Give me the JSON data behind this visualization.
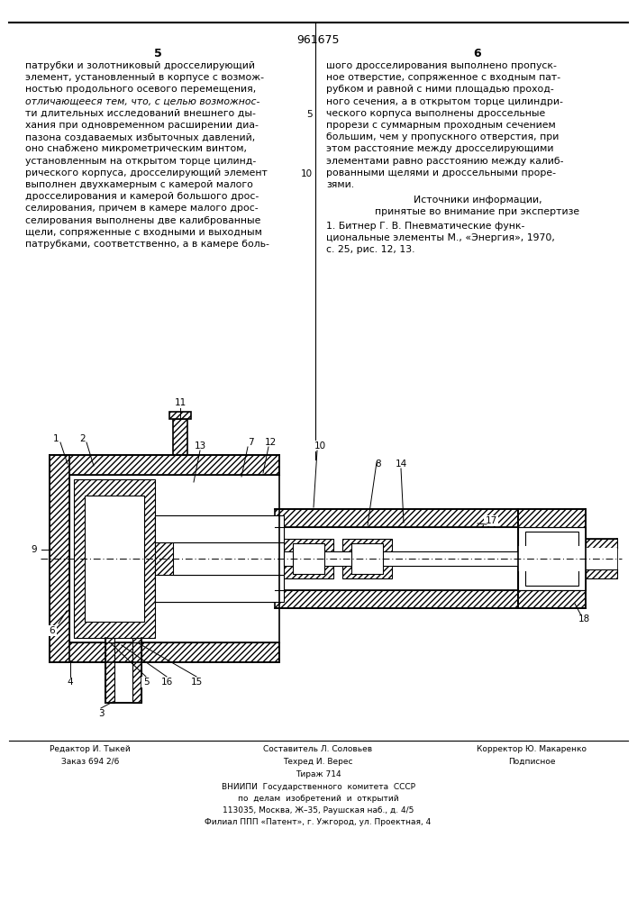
{
  "page_number": "961675",
  "col_left_num": "5",
  "col_right_num": "6",
  "col_left_text": [
    "патрубки и золотниковый дросселирующий",
    "элемент, установленный в корпусе с возмож-",
    "ностью продольного осевого перемещения,",
    "отличающееся тем, что, с целью возможнос-",
    "ти длительных исследований внешнего ды-",
    "хания при одновременном расширении диа-",
    "пазона создаваемых избыточных давлений,",
    "оно снабжено микрометрическим винтом,",
    "установленным на открытом торце цилинд-",
    "рического корпуса, дросселирующий элемент",
    "выполнен двухкамерным с камерой малого",
    "дросселирования и камерой большого дрос-",
    "селирования, причем в камере малого дрос-",
    "селирования выполнены две калиброванные",
    "щели, сопряженные с входными и выходным",
    "патрубками, соответственно, а в камере боль-"
  ],
  "col_right_text": [
    "шого дросселирования выполнено пропуск-",
    "ное отверстие, сопряженное с входным пат-",
    "рубком и равной с ними площадью проход-",
    "ного сечения, а в открытом торце цилиндри-",
    "ческого корпуса выполнены дроссельные",
    "прорези с суммарным проходным сечением",
    "большим, чем у пропускного отверстия, при",
    "этом расстояние между дросселирующими",
    "элементами равно расстоянию между калиб-",
    "рованными щелями и дроссельными проре-",
    "зями."
  ],
  "sources_header": "Источники информации,",
  "sources_subheader": "принятые во внимание при экспертизе",
  "sources_text": [
    "1. Битнер Г. В. Пневматические функ-",
    "циональные элементы М., «Энергия», 1970,",
    "с. 25, рис. 12, 13."
  ],
  "bottom_left_label": "Редактор И. Тыкей",
  "bottom_center_label": "Составитель Л. Соловьев",
  "bottom_right_label": "Корректор Ю. Макаренко",
  "bottom_left2": "Заказ 694 2/6",
  "bottom_center2": "Техред И. Верес",
  "bottom_right2": "Подписное",
  "bottom_center3": "Тираж 714",
  "vniipи_text": "ВНИИПИ  Государственного  комитета  СССР",
  "vniipи_text2": "по  делам  изобретений  и  открытий",
  "vniipи_addr": "113035, Москва, Ж–35, Раушская наб., д. 4/5",
  "vniipи_filial": "Филиал ППП «Патент», г. Ужгород, ул. Проектная, 4",
  "italic_line": 3,
  "bg_color": "#ffffff",
  "text_color": "#000000"
}
